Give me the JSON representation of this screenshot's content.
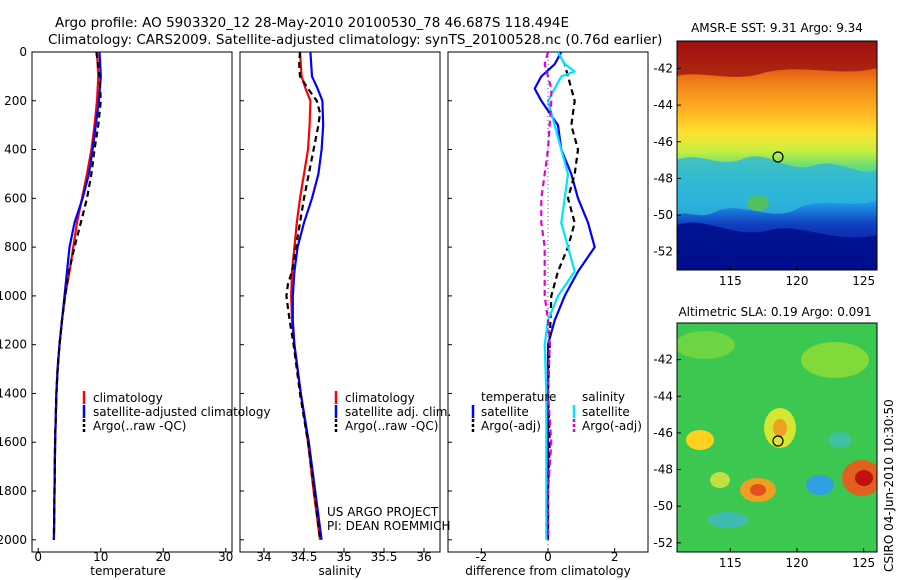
{
  "title": {
    "line1": "Argo profile: AO 5903320_12 28-May-2010 20100530_78 46.687S 118.494E",
    "line2": "Climatology: CARS2009. Satellite-adjusted climatology: synTS_20100528.nc (0.76d earlier)"
  },
  "colors": {
    "climatology": "#ff0000",
    "satellite": "#0000ff",
    "argo": "#000000",
    "sat_salinity": "#00e5ff",
    "argo_salinity": "#e000e0"
  },
  "chart_data": [
    {
      "type": "line",
      "xlabel": "temperature",
      "xlim": [
        -1,
        31
      ],
      "xticks": [
        "0",
        "10",
        "20",
        "30"
      ],
      "ylim": [
        0,
        2050
      ],
      "yticks": [
        "0",
        "200",
        "400",
        "600",
        "800",
        "1000",
        "1200",
        "1400",
        "1600",
        "1800",
        "2000"
      ],
      "series": [
        {
          "name": "climatology",
          "style": "solid",
          "depth": [
            0,
            100,
            200,
            300,
            400,
            500,
            600,
            700,
            800,
            900,
            1000,
            1100,
            1200,
            1300,
            1400,
            1600,
            1800,
            2000
          ],
          "values": [
            9.4,
            9.6,
            9.4,
            9.0,
            8.5,
            7.8,
            7.0,
            6.2,
            5.6,
            5.0,
            4.3,
            3.8,
            3.4,
            3.1,
            2.9,
            2.7,
            2.6,
            2.5
          ]
        },
        {
          "name": "satellite-adjusted climatology",
          "style": "solid",
          "depth": [
            0,
            100,
            200,
            300,
            400,
            500,
            600,
            700,
            800,
            900,
            1000,
            1100,
            1200,
            1300,
            1400,
            1600,
            1800,
            2000
          ],
          "values": [
            9.8,
            10.0,
            9.7,
            9.2,
            8.7,
            8.1,
            7.1,
            5.8,
            5.0,
            4.6,
            4.2,
            3.8,
            3.4,
            3.1,
            2.9,
            2.7,
            2.6,
            2.5
          ]
        },
        {
          "name": "Argo(..raw -QC)",
          "style": "dashed",
          "depth": [
            0,
            100,
            200,
            300,
            400,
            500,
            600,
            700,
            800,
            900,
            1000,
            1100,
            1200,
            1300,
            1400,
            1600,
            1800,
            2000
          ],
          "values": [
            9.3,
            9.8,
            10.0,
            9.6,
            9.0,
            8.5,
            7.8,
            6.8,
            5.8,
            4.9,
            4.3,
            3.8,
            3.4,
            3.1,
            2.9,
            2.7,
            2.6,
            2.5
          ]
        }
      ],
      "legend": [
        "climatology",
        "satellite-adjusted climatology",
        "Argo(..raw -QC)"
      ],
      "legend_position": "lower-right"
    },
    {
      "type": "line",
      "xlabel": "salinity",
      "xlim": [
        33.7,
        36.2
      ],
      "xticks": [
        "34",
        "34.5",
        "35",
        "35.5",
        "36"
      ],
      "ylim": [
        0,
        2050
      ],
      "series": [
        {
          "name": "climatology",
          "style": "solid",
          "depth": [
            0,
            100,
            150,
            200,
            300,
            400,
            500,
            600,
            700,
            800,
            900,
            1000,
            1100,
            1200,
            1400,
            1600,
            1800,
            2000
          ],
          "values": [
            34.45,
            34.47,
            34.52,
            34.58,
            34.57,
            34.55,
            34.5,
            34.45,
            34.41,
            34.38,
            34.35,
            34.34,
            34.35,
            34.38,
            34.46,
            34.55,
            34.62,
            34.7
          ]
        },
        {
          "name": "satellite adj. clim.",
          "style": "solid",
          "depth": [
            0,
            100,
            150,
            200,
            300,
            400,
            500,
            600,
            700,
            800,
            900,
            1000,
            1100,
            1200,
            1400,
            1600,
            1800,
            2000
          ],
          "values": [
            34.58,
            34.6,
            34.67,
            34.73,
            34.74,
            34.72,
            34.68,
            34.6,
            34.5,
            34.42,
            34.38,
            34.36,
            34.36,
            34.38,
            34.46,
            34.56,
            34.64,
            34.72
          ]
        },
        {
          "name": "Argo(..raw -QC)",
          "style": "dashed",
          "depth": [
            0,
            50,
            100,
            150,
            200,
            250,
            300,
            400,
            500,
            600,
            700,
            800,
            900,
            950,
            1000,
            1100,
            1200,
            1400,
            1600,
            1800,
            2000
          ],
          "values": [
            34.45,
            34.44,
            34.45,
            34.55,
            34.66,
            34.7,
            34.68,
            34.62,
            34.56,
            34.5,
            34.45,
            34.4,
            34.35,
            34.3,
            34.28,
            34.32,
            34.37,
            34.45,
            34.55,
            34.63,
            34.7
          ]
        }
      ],
      "legend": [
        "climatology",
        "satellite adj. clim.",
        "Argo(..raw -QC)"
      ],
      "legend_position": "lower-right",
      "annotations": [
        "US ARGO PROJECT",
        "PI: DEAN ROEMMICH"
      ]
    },
    {
      "type": "line",
      "xlabel": "difference from climatology",
      "xlim": [
        -3,
        3
      ],
      "xticks": [
        "-2",
        "0",
        "2"
      ],
      "ylim": [
        0,
        2050
      ],
      "series": [
        {
          "name": "temperature satellite",
          "style": "solid",
          "depth": [
            0,
            50,
            100,
            150,
            200,
            300,
            400,
            500,
            600,
            700,
            800,
            900,
            1000,
            1100,
            1200,
            1400,
            1600,
            1800,
            2000
          ],
          "values": [
            0.4,
            0.2,
            -0.2,
            -0.4,
            -0.2,
            0.3,
            0.4,
            0.7,
            0.9,
            1.2,
            1.4,
            0.9,
            0.5,
            0.2,
            0.0,
            0.0,
            0.0,
            0.0,
            0.0
          ]
        },
        {
          "name": "temperature Argo(-adj)",
          "style": "dashed",
          "depth": [
            0,
            50,
            100,
            150,
            200,
            300,
            400,
            500,
            600,
            700,
            800,
            900,
            1000,
            1200,
            1400,
            1600,
            1800,
            2000
          ],
          "values": [
            0.3,
            0.5,
            0.6,
            0.7,
            0.8,
            0.7,
            0.9,
            0.8,
            0.6,
            0.8,
            0.6,
            0.3,
            0.1,
            0.05,
            0.0,
            0.05,
            0.0,
            0.0
          ]
        },
        {
          "name": "salinity satellite",
          "style": "solid",
          "depth": [
            0,
            50,
            80,
            100,
            150,
            200,
            300,
            400,
            500,
            600,
            700,
            800,
            900,
            1000,
            1100,
            1200,
            1400,
            1600,
            1800,
            2000
          ],
          "values": [
            0.3,
            0.5,
            0.8,
            0.4,
            0.2,
            0.0,
            0.2,
            0.4,
            0.6,
            0.5,
            0.4,
            0.6,
            0.8,
            0.3,
            0.0,
            -0.1,
            -0.05,
            -0.05,
            -0.05,
            -0.05
          ]
        },
        {
          "name": "salinity Argo(-adj)",
          "style": "dashed",
          "depth": [
            0,
            50,
            100,
            150,
            200,
            300,
            400,
            500,
            600,
            700,
            800,
            900,
            1000,
            1100,
            1200,
            1400,
            1600,
            1800,
            2000
          ],
          "values": [
            0.0,
            -0.1,
            0.0,
            0.1,
            0.1,
            0.05,
            0.0,
            -0.1,
            -0.2,
            -0.2,
            -0.1,
            -0.1,
            -0.1,
            0.0,
            0.05,
            0.0,
            0.1,
            0.0,
            0.0
          ]
        }
      ],
      "legend_headers": [
        "temperature",
        "salinity"
      ],
      "legend": [
        "satellite",
        "Argo(-adj)",
        "satellite",
        "Argo(-adj)"
      ],
      "legend_position": "lower"
    },
    {
      "type": "heatmap",
      "title": "AMSR-E SST: 9.31  Argo: 9.34",
      "xlim": [
        111,
        126
      ],
      "ylim": [
        -53,
        -40.5
      ],
      "xticks": [
        "115",
        "120",
        "125"
      ],
      "yticks": [
        "-42",
        "-44",
        "-46",
        "-48",
        "-50",
        "-52"
      ],
      "marker": {
        "lon": 118.494,
        "lat": -46.687
      },
      "colormap": "jet"
    },
    {
      "type": "heatmap",
      "title": "Altimetric SLA: 0.19  Argo: 0.091",
      "xlim": [
        111,
        126
      ],
      "ylim": [
        -52.5,
        -40
      ],
      "xticks": [
        "115",
        "120",
        "125"
      ],
      "yticks": [
        "-42",
        "-44",
        "-46",
        "-48",
        "-50",
        "-52"
      ],
      "marker": {
        "lon": 118.494,
        "lat": -46.687
      },
      "colormap": "jet"
    }
  ],
  "footer": "CSIRO 04-Jun-2010 10:30:50"
}
